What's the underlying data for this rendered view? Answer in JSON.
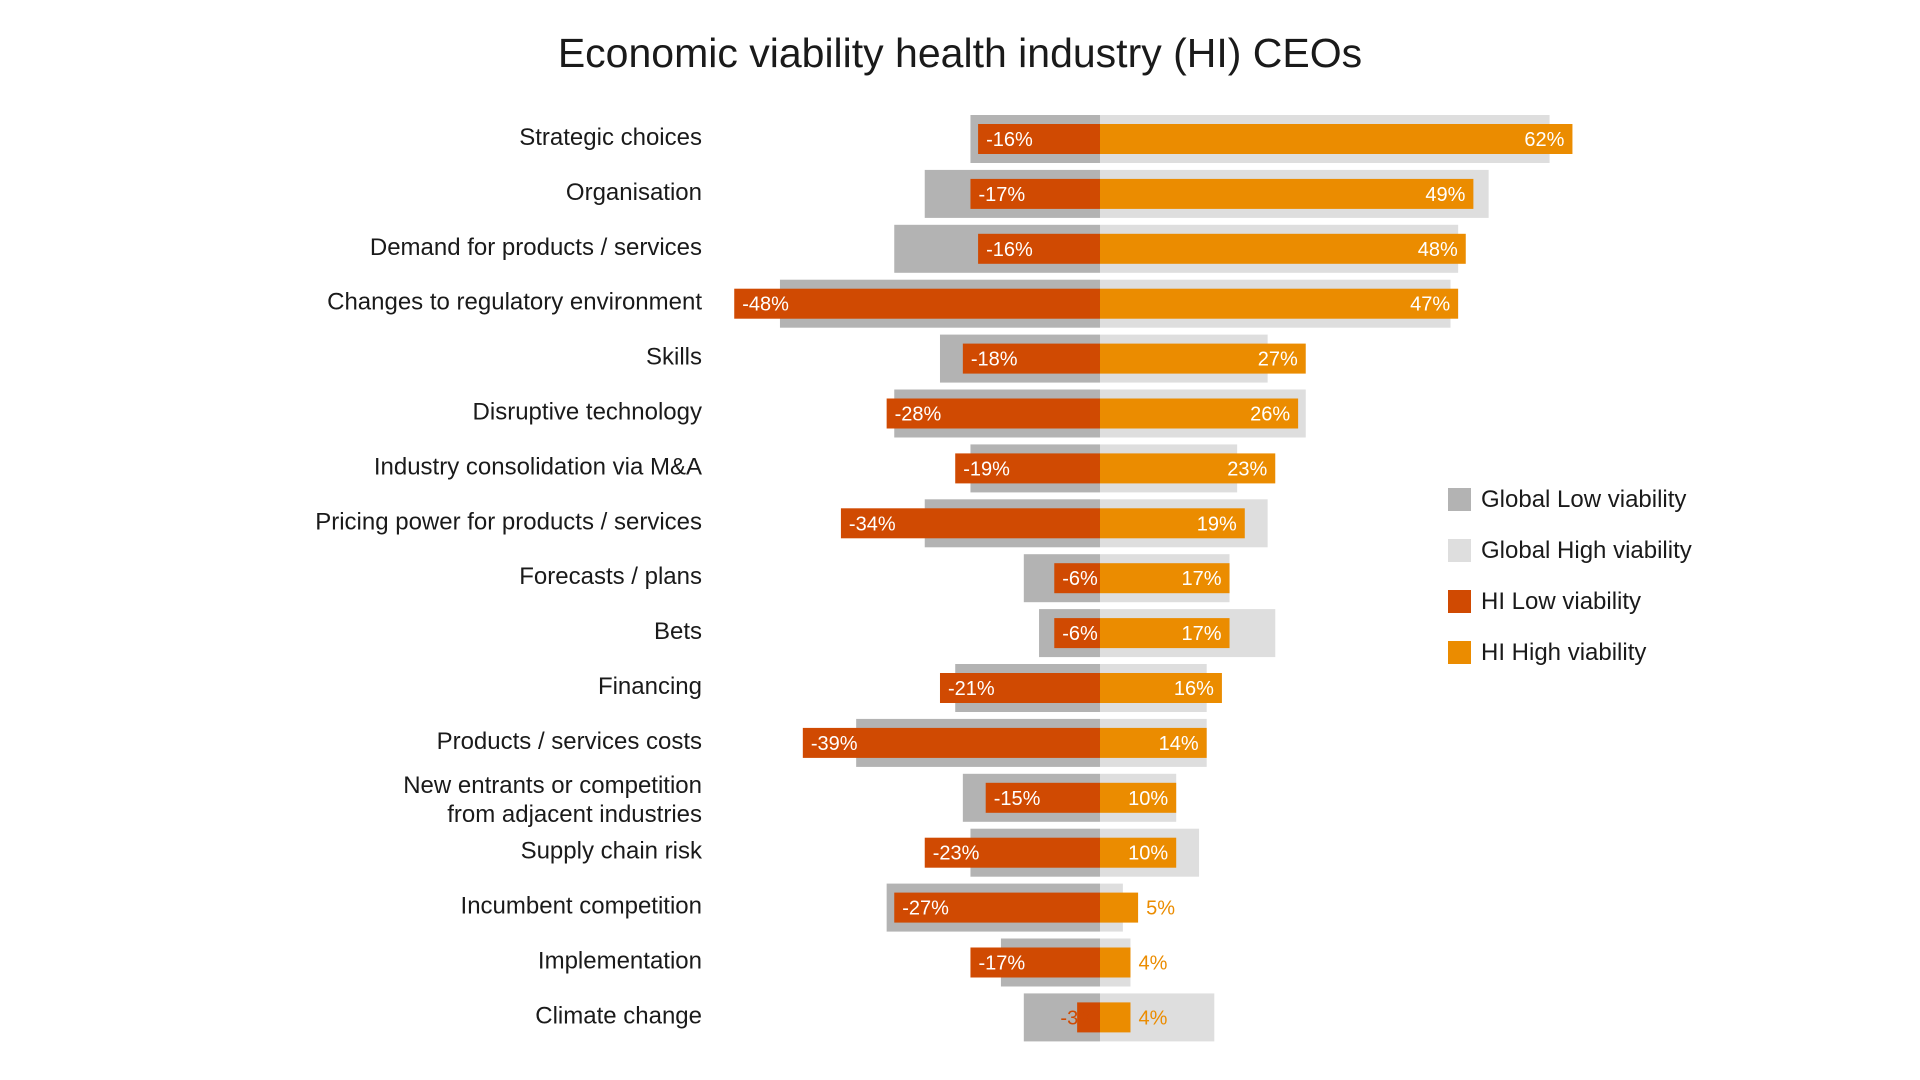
{
  "colors": {
    "global_low": "#b3b3b3",
    "global_high": "#dedede",
    "hi_low": "#d04a02",
    "hi_high": "#eb8c00"
  },
  "chart_data": {
    "type": "bar",
    "orientation": "horizontal-diverging",
    "title": "Economic viability health industry (HI) CEOs",
    "xlabel": "",
    "ylabel": "",
    "unit": "%",
    "xlim": [
      -50,
      65
    ],
    "grid": false,
    "legend_position": "right",
    "categories": [
      [
        "Strategic choices"
      ],
      [
        "Organisation"
      ],
      [
        "Demand for products / services"
      ],
      [
        "Changes to regulatory environment"
      ],
      [
        "Skills"
      ],
      [
        "Disruptive technology"
      ],
      [
        "Industry consolidation via M&A"
      ],
      [
        "Pricing power for products / services"
      ],
      [
        "Forecasts / plans"
      ],
      [
        "Bets"
      ],
      [
        "Financing"
      ],
      [
        "Products / services costs"
      ],
      [
        "New entrants or competition",
        "from adjacent industries"
      ],
      [
        "Supply chain risk"
      ],
      [
        "Incumbent competition"
      ],
      [
        "Implementation"
      ],
      [
        "Climate change"
      ]
    ],
    "series": [
      {
        "name": "Global Low viability",
        "color": "#b3b3b3",
        "values": [
          -17,
          -23,
          -27,
          -42,
          -21,
          -27,
          -17,
          -23,
          -10,
          -8,
          -19,
          -32,
          -18,
          -17,
          -28,
          -13,
          -10
        ]
      },
      {
        "name": "Global High viability",
        "color": "#dedede",
        "values": [
          59,
          51,
          47,
          46,
          22,
          27,
          18,
          22,
          17,
          23,
          14,
          14,
          10,
          13,
          3,
          4,
          15
        ]
      },
      {
        "name": "HI Low viability",
        "color": "#d04a02",
        "values": [
          -16,
          -17,
          -16,
          -48,
          -18,
          -28,
          -19,
          -34,
          -6,
          -6,
          -21,
          -39,
          -15,
          -23,
          -27,
          -17,
          -3
        ]
      },
      {
        "name": "HI High viability",
        "color": "#eb8c00",
        "values": [
          62,
          49,
          48,
          47,
          27,
          26,
          23,
          19,
          17,
          17,
          16,
          14,
          10,
          10,
          5,
          4,
          4
        ]
      }
    ],
    "data_labels_low": [
      "-16%",
      "-17%",
      "-16%",
      "-48%",
      "-18%",
      "-28%",
      "-19%",
      "-34%",
      "-6%",
      "-6%",
      "-21%",
      "-39%",
      "-15%",
      "-23%",
      "-27%",
      "-17%",
      "-3%"
    ],
    "data_labels_high": [
      "62%",
      "49%",
      "48%",
      "47%",
      "27%",
      "26%",
      "23%",
      "19%",
      "17%",
      "17%",
      "16%",
      "14%",
      "10%",
      "10%",
      "5%",
      "4%",
      "4%"
    ]
  },
  "legend": [
    {
      "label": "Global Low viability",
      "color": "#b3b3b3"
    },
    {
      "label": "Global High viability",
      "color": "#dedede"
    },
    {
      "label": "HI Low viability",
      "color": "#d04a02"
    },
    {
      "label": "HI High viability",
      "color": "#eb8c00"
    }
  ]
}
